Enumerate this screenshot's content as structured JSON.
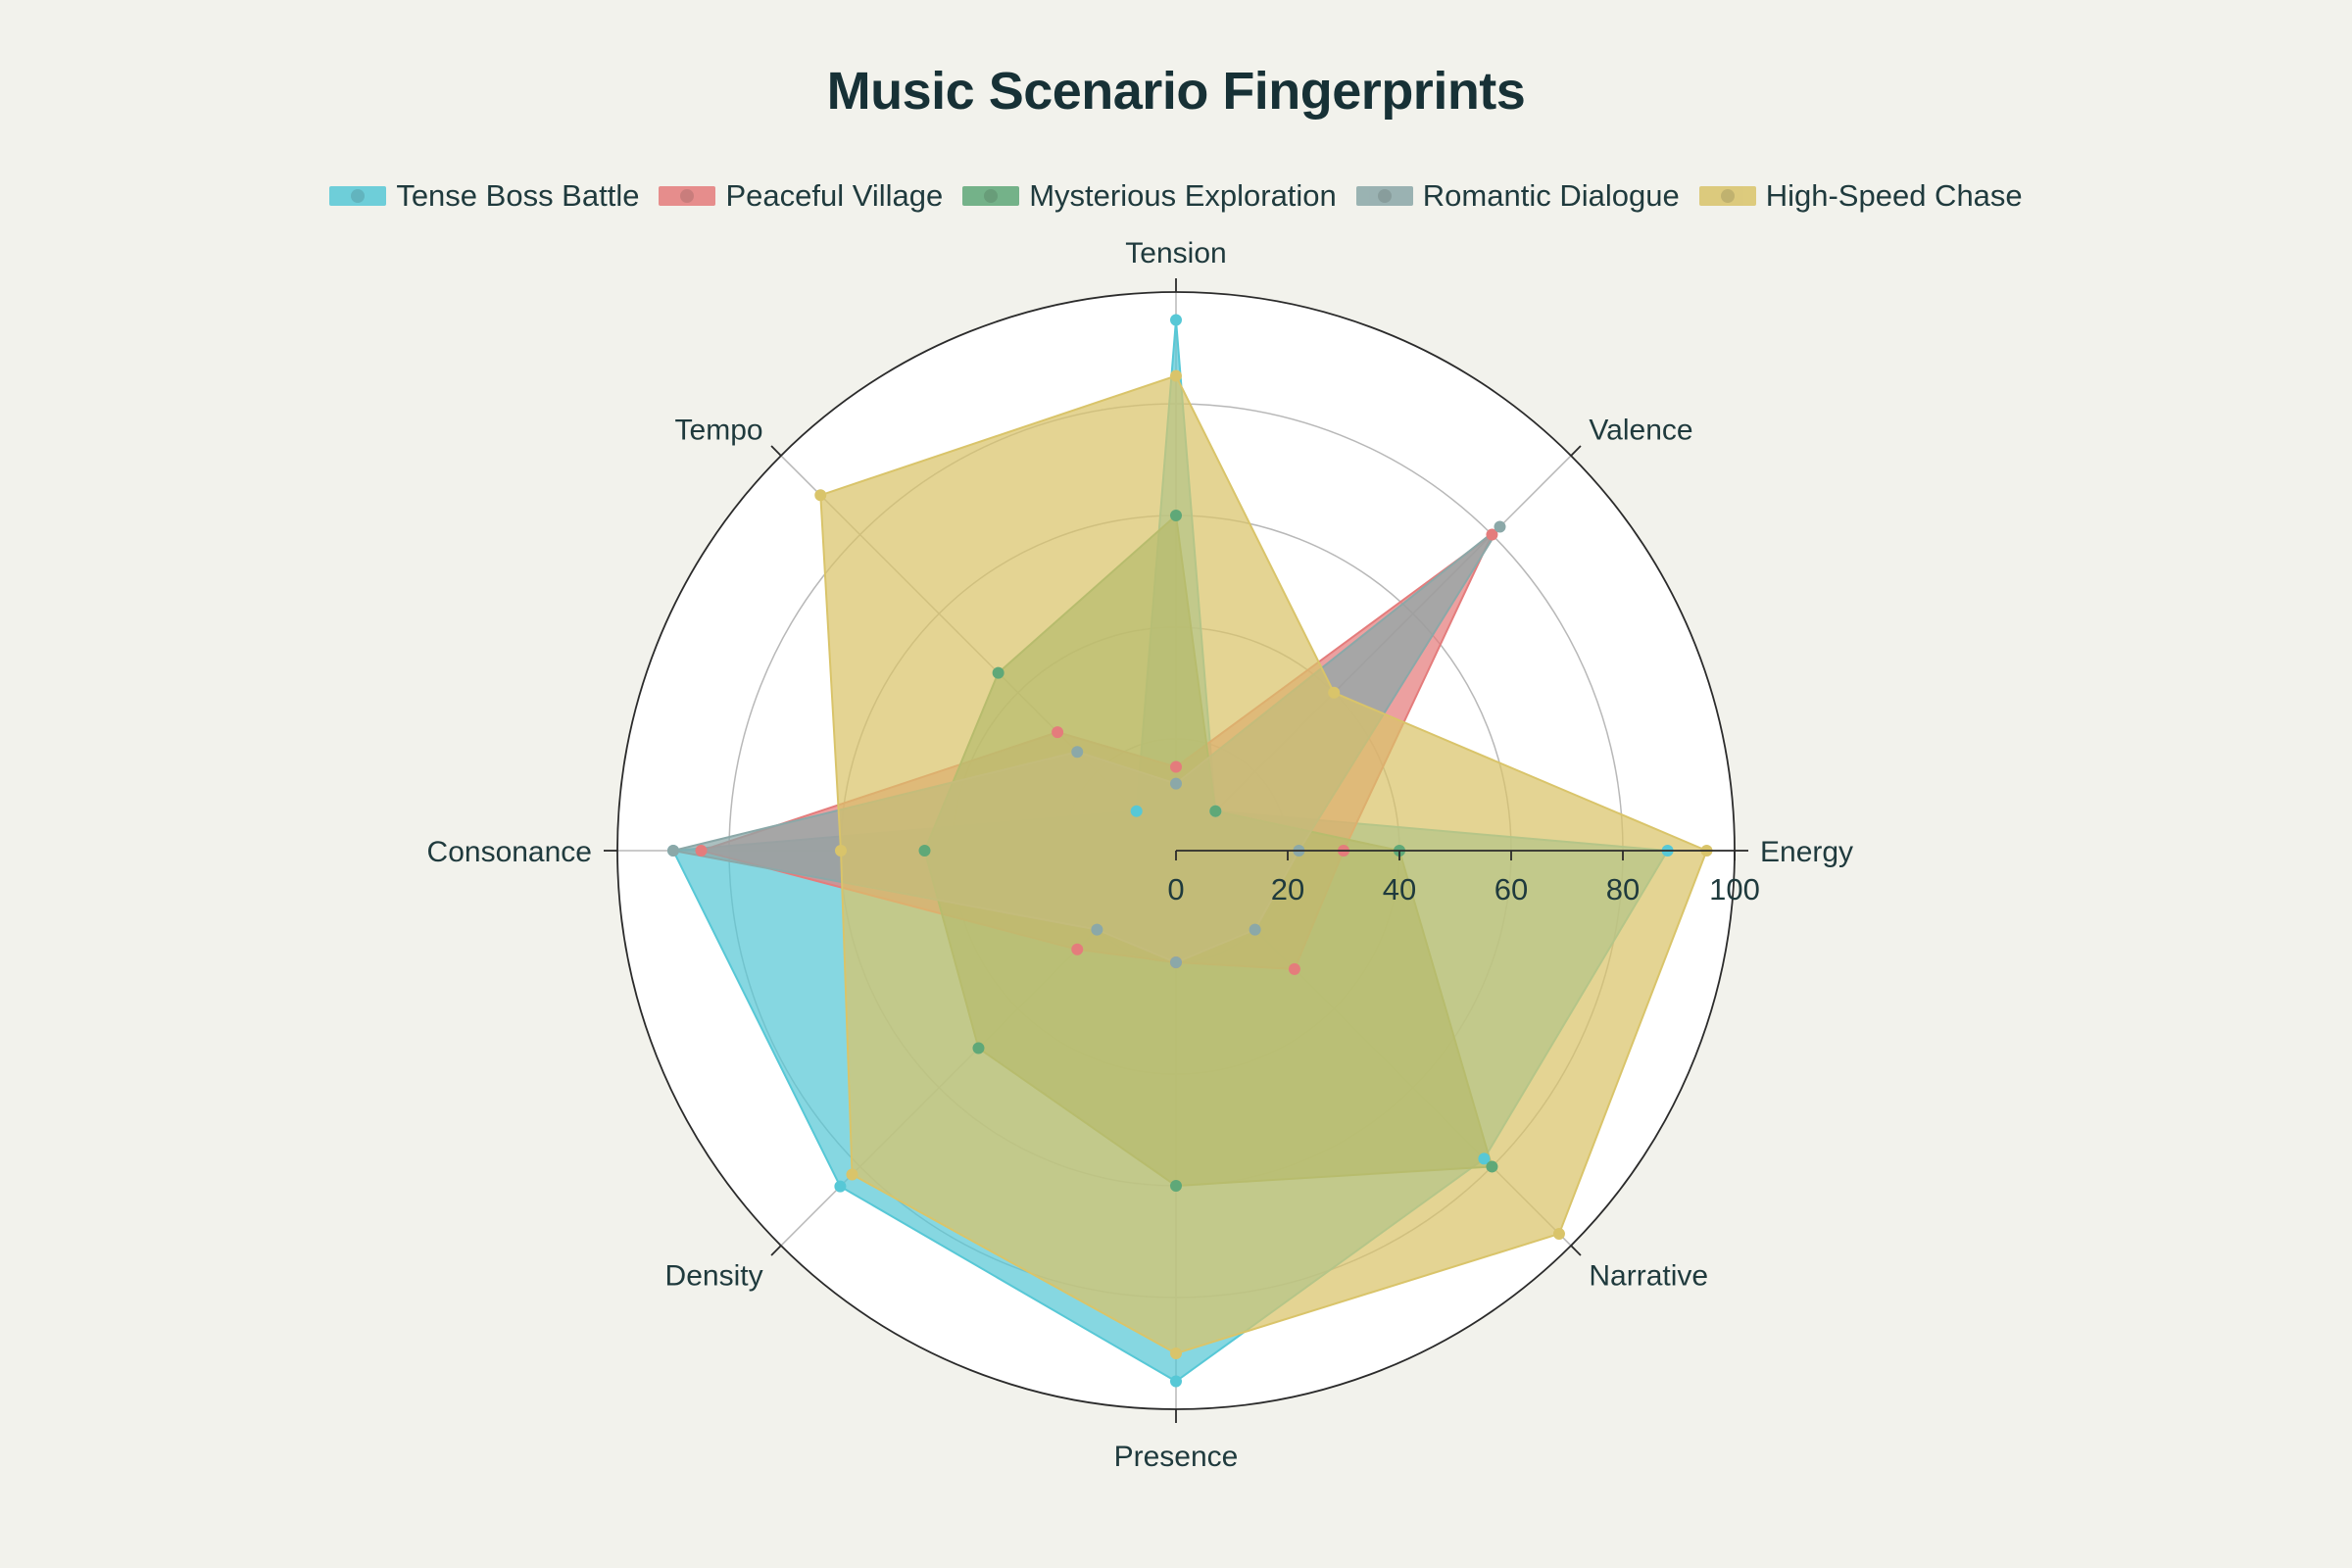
{
  "title": "Music Scenario Fingerprints",
  "chart_data": {
    "type": "radar",
    "title": "Music Scenario Fingerprints",
    "axes": [
      "Tension",
      "Valence",
      "Energy",
      "Narrative",
      "Presence",
      "Density",
      "Consonance",
      "Tempo"
    ],
    "radial_range": [
      0,
      100
    ],
    "radial_ticks": [
      0,
      20,
      40,
      60,
      80,
      100
    ],
    "grid": true,
    "legend_position": "top-center",
    "series": [
      {
        "name": "Tense Boss Battle",
        "color": "#57c8d6",
        "values": [
          95,
          10,
          88,
          78,
          95,
          85,
          90,
          10
        ]
      },
      {
        "name": "Peaceful Village",
        "color": "#e47c7c",
        "values": [
          15,
          80,
          30,
          30,
          20,
          25,
          85,
          30
        ]
      },
      {
        "name": "Mysterious Exploration",
        "color": "#5fa878",
        "values": [
          60,
          10,
          40,
          80,
          60,
          50,
          45,
          45
        ]
      },
      {
        "name": "Romantic Dialogue",
        "color": "#8ba8a8",
        "values": [
          12,
          82,
          22,
          20,
          20,
          20,
          90,
          25
        ]
      },
      {
        "name": "High-Speed Chase",
        "color": "#d9c46a",
        "values": [
          85,
          40,
          95,
          97,
          90,
          82,
          60,
          90
        ]
      }
    ]
  }
}
